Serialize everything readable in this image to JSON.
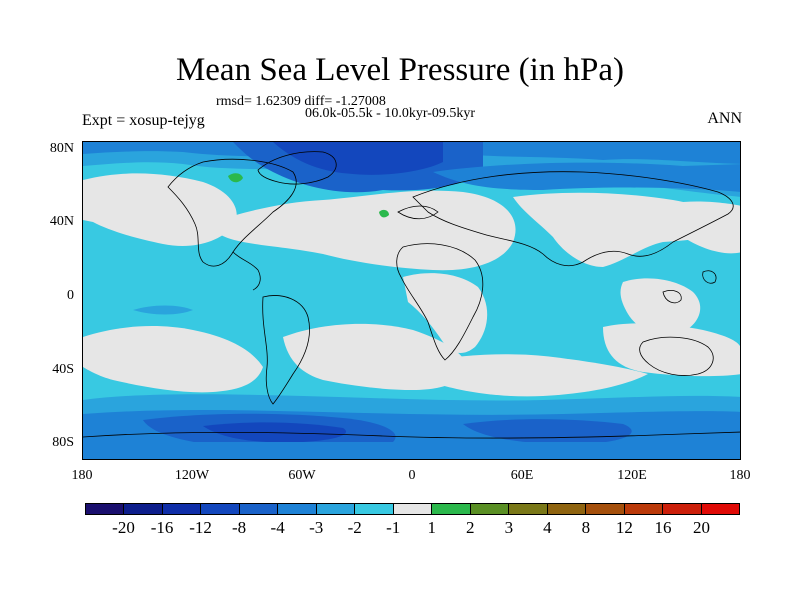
{
  "title": "Mean Sea Level Pressure (in hPa)",
  "stats": "rmsd= 1.62309 diff= -1.27008",
  "period": "06.0k-05.5k - 10.0kyr-09.5kyr",
  "expt": "Expt = xosup-tejyg",
  "season": "ANN",
  "lat_labels": [
    "80N",
    "40N",
    "0",
    "40S",
    "80S"
  ],
  "lon_labels": [
    "180",
    "120W",
    "60W",
    "0",
    "60E",
    "120E",
    "180"
  ],
  "colorbar": {
    "colors": [
      "#1a0f6e",
      "#0d1e8c",
      "#0f2ea8",
      "#1347bd",
      "#1a62c9",
      "#1e82d6",
      "#2aa4dd",
      "#38c9e2",
      "#e6e6e6",
      "#2bb84c",
      "#5a8f24",
      "#7a7818",
      "#8f6410",
      "#a5500c",
      "#bb3a0a",
      "#cc1f0a",
      "#e00a06"
    ],
    "labels": [
      "-20",
      "-16",
      "-12",
      "-8",
      "-4",
      "-3",
      "-2",
      "-1",
      "1",
      "2",
      "3",
      "4",
      "8",
      "12",
      "16",
      "20"
    ]
  },
  "map_colors": {
    "neutral": "#e6e6e6",
    "light": "#38c9e2",
    "mid": "#2aa4dd",
    "deep": "#1e82d6",
    "deeper": "#1a62c9",
    "deepest": "#1347bd",
    "green": "#2bb84c"
  }
}
